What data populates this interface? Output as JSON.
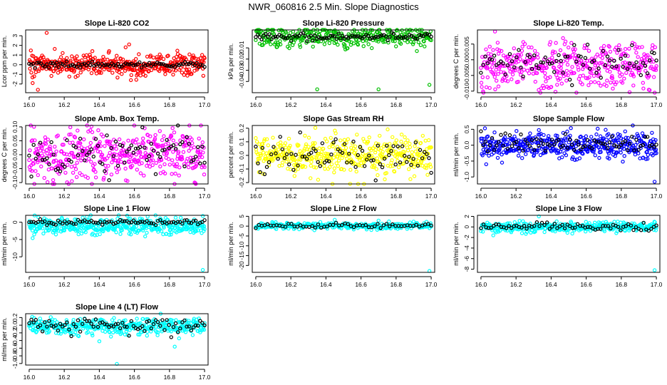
{
  "figure_title": "NWR_060816  2.5 Min. Slope Diagnostics",
  "colors": {
    "red": "#ff0000",
    "green": "#00c000",
    "magenta": "#ff00ff",
    "yellow": "#ffff00",
    "blue": "#0000ff",
    "cyan": "#00ffff",
    "black": "#000000"
  },
  "chart_data": [
    {
      "type": "scatter",
      "title": "Slope Li-820 CO2",
      "ylabel": "Lcor ppm per min.",
      "xticks": [
        16.0,
        16.2,
        16.4,
        16.6,
        16.8,
        17.0
      ],
      "xtick_labels": [
        "16.0",
        "16.2",
        "16.4",
        "16.6",
        "16.8",
        "17.0"
      ],
      "xlim": [
        15.98,
        17.02
      ],
      "yticks": [
        -2,
        -1,
        0,
        1,
        2,
        3
      ],
      "ytick_labels": [
        "-2",
        "-1",
        "0",
        "1",
        "2",
        "3"
      ],
      "ylim": [
        -2.9,
        3.6
      ],
      "series": [
        {
          "name": "all",
          "color": "red",
          "center": 0.0,
          "spread": 0.55,
          "count": 420,
          "seed": 11,
          "extra": [
            [
              16.1,
              3.3
            ],
            [
              16.05,
              -2.6
            ],
            [
              16.57,
              2.1
            ],
            [
              16.55,
              1.8
            ],
            [
              16.02,
              -1.9
            ],
            [
              16.58,
              -1.6
            ]
          ]
        },
        {
          "name": "selected",
          "color": "black",
          "center": 0.0,
          "spread": 0.15,
          "count": 90,
          "seed": 12,
          "extra": []
        }
      ]
    },
    {
      "type": "scatter",
      "title": "Slope Li-820 Pressure",
      "ylabel": "kPa per min.",
      "xticks": [
        16.0,
        16.2,
        16.4,
        16.6,
        16.8,
        17.0
      ],
      "xtick_labels": [
        "16.0",
        "16.2",
        "16.4",
        "16.6",
        "16.8",
        "17.0"
      ],
      "xlim": [
        15.98,
        17.02
      ],
      "yticks": [
        -0.04,
        -0.03,
        -0.02,
        -0.01
      ],
      "ytick_labels": [
        "-0.04",
        "-0.03",
        "-0.02",
        "-0.01"
      ],
      "ylim": [
        -0.05,
        0.006
      ],
      "series": [
        {
          "name": "all",
          "color": "green",
          "center": 0.0,
          "spread": 0.005,
          "count": 320,
          "seed": 21,
          "extra": [
            [
              16.35,
              -0.047
            ],
            [
              16.7,
              -0.047
            ],
            [
              16.99,
              -0.043
            ],
            [
              16.02,
              0.003
            ],
            [
              16.97,
              0.003
            ],
            [
              16.45,
              0.004
            ]
          ]
        },
        {
          "name": "selected",
          "color": "black",
          "center": 0.0,
          "spread": 0.0015,
          "count": 90,
          "seed": 22,
          "extra": []
        }
      ]
    },
    {
      "type": "scatter",
      "title": "Slope Li-820 Temp.",
      "ylabel": "degrees C per min.",
      "xticks": [
        16.0,
        16.2,
        16.4,
        16.6,
        16.8,
        17.0
      ],
      "xtick_labels": [
        "16.0",
        "16.2",
        "16.4",
        "16.6",
        "16.8",
        "17.0"
      ],
      "xlim": [
        15.98,
        17.02
      ],
      "yticks": [
        -0.01,
        -0.005,
        0.0,
        0.005
      ],
      "ytick_labels": [
        "-0.010",
        "-0.005",
        "0.000",
        "0.005"
      ],
      "ylim": [
        -0.0105,
        0.0095
      ],
      "series": [
        {
          "name": "all",
          "color": "magenta",
          "center": -0.002,
          "spread": 0.0035,
          "count": 420,
          "seed": 31,
          "extra": [
            [
              16.08,
              0.009
            ],
            [
              16.05,
              -0.009
            ],
            [
              16.1,
              -0.0085
            ]
          ]
        },
        {
          "name": "selected",
          "color": "black",
          "center": -0.001,
          "spread": 0.0025,
          "count": 80,
          "seed": 32,
          "extra": []
        }
      ]
    },
    {
      "type": "scatter",
      "title": "Slope Amb. Box Temp.",
      "ylabel": "degrees C per min.",
      "xticks": [
        16.0,
        16.2,
        16.4,
        16.6,
        16.8,
        17.0
      ],
      "xtick_labels": [
        "16.0",
        "16.2",
        "16.4",
        "16.6",
        "16.8",
        "17.0"
      ],
      "xlim": [
        15.98,
        17.02
      ],
      "yticks": [
        -0.1,
        -0.05,
        0.0,
        0.05,
        0.1
      ],
      "ytick_labels": [
        "-0.10",
        "-0.05",
        "0.00",
        "0.05",
        "0.10"
      ],
      "ylim": [
        -0.105,
        0.105
      ],
      "series": [
        {
          "name": "all",
          "color": "magenta",
          "center": 0.0,
          "spread": 0.045,
          "count": 440,
          "seed": 41,
          "extra": []
        },
        {
          "name": "selected",
          "color": "black",
          "center": 0.0,
          "spread": 0.04,
          "count": 80,
          "seed": 42,
          "extra": []
        }
      ]
    },
    {
      "type": "scatter",
      "title": "Slope Gas Stream RH",
      "ylabel": "percent per min.",
      "xticks": [
        16.0,
        16.2,
        16.4,
        16.6,
        16.8,
        17.0
      ],
      "xtick_labels": [
        "16.0",
        "16.2",
        "16.4",
        "16.6",
        "16.8",
        "17.0"
      ],
      "xlim": [
        15.98,
        17.02
      ],
      "yticks": [
        -0.2,
        -0.1,
        0.0,
        0.1,
        0.2
      ],
      "ytick_labels": [
        "-0.2",
        "-0.1",
        "0.0",
        "0.1",
        "0.2"
      ],
      "ylim": [
        -0.21,
        0.22
      ],
      "series": [
        {
          "name": "all",
          "color": "yellow",
          "center": 0.0,
          "spread": 0.07,
          "count": 440,
          "seed": 51,
          "extra": []
        },
        {
          "name": "selected",
          "color": "black",
          "center": 0.0,
          "spread": 0.07,
          "count": 80,
          "seed": 52,
          "extra": []
        }
      ]
    },
    {
      "type": "scatter",
      "title": "Slope Sample Flow",
      "ylabel": "ml/min per min.",
      "xticks": [
        16.0,
        16.2,
        16.4,
        16.6,
        16.8,
        17.0
      ],
      "xtick_labels": [
        "16.0",
        "16.2",
        "16.4",
        "16.6",
        "16.8",
        "17.0"
      ],
      "xlim": [
        15.98,
        17.02
      ],
      "yticks": [
        -1.0,
        -0.5,
        0.0,
        0.5
      ],
      "ytick_labels": [
        "-1.0",
        "-0.5",
        "0.0",
        "0.5"
      ],
      "ylim": [
        -1.22,
        0.62
      ],
      "series": [
        {
          "name": "all",
          "color": "blue",
          "center": 0.0,
          "spread": 0.2,
          "count": 440,
          "seed": 61,
          "extra": [
            [
              16.99,
              -1.15
            ],
            [
              16.03,
              -0.6
            ],
            [
              16.12,
              -0.55
            ]
          ]
        },
        {
          "name": "selected",
          "color": "black",
          "center": 0.05,
          "spread": 0.12,
          "count": 80,
          "seed": 62,
          "extra": []
        }
      ]
    },
    {
      "type": "scatter",
      "title": "Slope Line 1 Flow",
      "ylabel": "ml/min per min.",
      "xticks": [
        16.0,
        16.2,
        16.4,
        16.6,
        16.8,
        17.0
      ],
      "xtick_labels": [
        "16.0",
        "16.2",
        "16.4",
        "16.6",
        "16.8",
        "17.0"
      ],
      "xlim": [
        15.98,
        17.02
      ],
      "yticks": [
        -10,
        -5,
        0
      ],
      "ytick_labels": [
        "-10",
        "-5",
        "0"
      ],
      "ylim": [
        -14.5,
        2.0
      ],
      "series": [
        {
          "name": "all",
          "color": "cyan",
          "center": -1.0,
          "spread": 1.2,
          "count": 420,
          "seed": 71,
          "extra": [
            [
              16.99,
              -13.8
            ],
            [
              16.02,
              -4.6
            ],
            [
              16.99,
              1.8
            ]
          ]
        },
        {
          "name": "selected",
          "color": "black",
          "center": 0.0,
          "spread": 0.35,
          "count": 80,
          "seed": 72,
          "extra": []
        }
      ]
    },
    {
      "type": "scatter",
      "title": "Slope Line 2 Flow",
      "ylabel": "ml/min per min.",
      "xticks": [
        16.0,
        16.2,
        16.4,
        16.6,
        16.8,
        17.0
      ],
      "xtick_labels": [
        "16.0",
        "16.2",
        "16.4",
        "16.6",
        "16.8",
        "17.0"
      ],
      "xlim": [
        15.98,
        17.02
      ],
      "yticks": [
        -20,
        -15,
        -10,
        -5,
        0,
        5
      ],
      "ytick_labels": [
        "-20",
        "-15",
        "-10",
        "-5",
        "0",
        "5"
      ],
      "ylim": [
        -23.5,
        5.5
      ],
      "series": [
        {
          "name": "all",
          "color": "cyan",
          "center": 0.2,
          "spread": 0.8,
          "count": 300,
          "seed": 81,
          "extra": [
            [
              16.99,
              -22.8
            ],
            [
              16.45,
              3.2
            ],
            [
              16.7,
              2.8
            ]
          ]
        },
        {
          "name": "selected",
          "color": "black",
          "center": 0.3,
          "spread": 0.6,
          "count": 60,
          "seed": 82,
          "extra": []
        }
      ]
    },
    {
      "type": "scatter",
      "title": "Slope Line 3 Flow",
      "ylabel": "ml/min per min.",
      "xticks": [
        16.0,
        16.2,
        16.4,
        16.6,
        16.8,
        17.0
      ],
      "xtick_labels": [
        "16.0",
        "16.2",
        "16.4",
        "16.6",
        "16.8",
        "17.0"
      ],
      "xlim": [
        15.98,
        17.02
      ],
      "yticks": [
        -8,
        -6,
        -4,
        -2,
        0,
        2
      ],
      "ytick_labels": [
        "-8",
        "-6",
        "-4",
        "-2",
        "0",
        "2"
      ],
      "ylim": [
        -8.6,
        2.2
      ],
      "series": [
        {
          "name": "all",
          "color": "cyan",
          "center": 0.0,
          "spread": 0.45,
          "count": 360,
          "seed": 91,
          "extra": [
            [
              16.99,
              -8.2
            ],
            [
              16.33,
              2.0
            ],
            [
              16.07,
              -1.6
            ]
          ]
        },
        {
          "name": "selected",
          "color": "black",
          "center": 0.1,
          "spread": 0.4,
          "count": 70,
          "seed": 92,
          "extra": []
        }
      ]
    },
    {
      "type": "scatter",
      "title": "Slope Line 4 (LT) Flow",
      "ylabel": "ml/min per min.",
      "xticks": [
        16.0,
        16.2,
        16.4,
        16.6,
        16.8,
        17.0
      ],
      "xtick_labels": [
        "16.0",
        "16.2",
        "16.4",
        "16.6",
        "16.8",
        "17.0"
      ],
      "xlim": [
        15.98,
        17.02
      ],
      "yticks": [
        -1.0,
        -0.8,
        -0.6,
        -0.4,
        -0.2,
        0.0,
        0.2
      ],
      "ytick_labels": [
        "-1.0",
        "-0.8",
        "-0.6",
        "-0.4",
        "-0.2",
        "0.0",
        "0.2"
      ],
      "ylim": [
        -1.04,
        0.3
      ],
      "series": [
        {
          "name": "all",
          "color": "cyan",
          "center": -0.03,
          "spread": 0.1,
          "count": 400,
          "seed": 101,
          "extra": [
            [
              16.5,
              -1.01
            ],
            [
              16.83,
              -0.56
            ],
            [
              16.4,
              -0.42
            ]
          ]
        },
        {
          "name": "selected",
          "color": "black",
          "center": 0.0,
          "spread": 0.1,
          "count": 80,
          "seed": 102,
          "extra": []
        }
      ]
    }
  ]
}
